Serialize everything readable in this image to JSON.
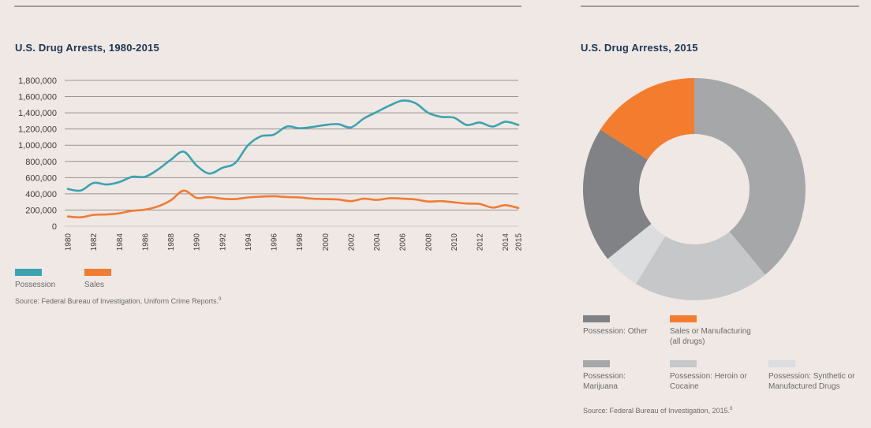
{
  "left_panel": {
    "title": "U.S. Drug Arrests, 1980-2015",
    "legend": [
      {
        "label": "Possession",
        "color": "#3ba3b0"
      },
      {
        "label": "Sales",
        "color": "#f07b33"
      }
    ],
    "source": "Source: Federal Bureau of Investigation, Uniform Crime Reports.",
    "source_note": "9"
  },
  "right_panel": {
    "title": "U.S. Drug Arrests, 2015",
    "legend": [
      {
        "label": "Possession: Other",
        "color": "#808285"
      },
      {
        "label": "Sales or Manufacturing (all drugs)",
        "color": "#f47c2e"
      },
      {
        "label": "Possession: Marijuana",
        "color": "#a6a7a9"
      },
      {
        "label": "Possession: Heroin or Cocaine",
        "color": "#c6c7c9"
      },
      {
        "label": "Possession: Synthetic or Manufactured Drugs",
        "color": "#dcdddf"
      }
    ],
    "source": "Source: Federal Bureau of Investigation, 2015.",
    "source_note": "8"
  },
  "chart_data": [
    {
      "type": "line",
      "title": "U.S. Drug Arrests, 1980-2015",
      "xlabel": "",
      "ylabel": "",
      "ylim": [
        0,
        1800000
      ],
      "yticks": [
        0,
        200000,
        400000,
        600000,
        800000,
        1000000,
        1200000,
        1400000,
        1600000,
        1800000
      ],
      "ytick_labels": [
        "0",
        "200,000",
        "400,000",
        "600,000",
        "800,000",
        "1,000,000",
        "1,200,000",
        "1,400,000",
        "1,600,000",
        "1,800,000"
      ],
      "xtick_labels": [
        "1980",
        "1982",
        "1984",
        "1986",
        "1988",
        "1990",
        "1992",
        "1994",
        "1996",
        "1998",
        "2000",
        "2002",
        "2004",
        "2006",
        "2008",
        "2010",
        "2012",
        "2014",
        "2015"
      ],
      "grid": true,
      "legend_position": "bottom-left",
      "x": [
        1980,
        1981,
        1982,
        1983,
        1984,
        1985,
        1986,
        1987,
        1988,
        1989,
        1990,
        1991,
        1992,
        1993,
        1994,
        1995,
        1996,
        1997,
        1998,
        1999,
        2000,
        2001,
        2002,
        2003,
        2004,
        2005,
        2006,
        2007,
        2008,
        2009,
        2010,
        2011,
        2012,
        2013,
        2014,
        2015
      ],
      "series": [
        {
          "name": "Possession",
          "color": "#3ba3b0",
          "values": [
            460000,
            440000,
            535000,
            515000,
            545000,
            610000,
            610000,
            700000,
            820000,
            920000,
            750000,
            650000,
            720000,
            780000,
            1000000,
            1110000,
            1130000,
            1230000,
            1210000,
            1225000,
            1250000,
            1260000,
            1220000,
            1330000,
            1410000,
            1490000,
            1550000,
            1520000,
            1400000,
            1350000,
            1340000,
            1250000,
            1280000,
            1230000,
            1290000,
            1250000
          ]
        },
        {
          "name": "Sales",
          "color": "#f07b33",
          "values": [
            120000,
            110000,
            140000,
            145000,
            160000,
            190000,
            205000,
            245000,
            320000,
            440000,
            350000,
            360000,
            340000,
            335000,
            355000,
            365000,
            370000,
            360000,
            355000,
            340000,
            335000,
            330000,
            310000,
            340000,
            325000,
            345000,
            340000,
            330000,
            305000,
            310000,
            295000,
            280000,
            275000,
            230000,
            260000,
            225000
          ]
        }
      ]
    },
    {
      "type": "pie",
      "title": "U.S. Drug Arrests, 2015",
      "donut": true,
      "unit": "percent",
      "slices": [
        {
          "label": "Possession: Marijuana",
          "value": 39.0,
          "color": "#a6a7a9"
        },
        {
          "label": "Possession: Heroin or Cocaine",
          "value": 19.8,
          "color": "#c6c7c9"
        },
        {
          "label": "Possession: Synthetic or Manufactured Drugs",
          "value": 5.4,
          "color": "#dcdddf"
        },
        {
          "label": "Possession: Other",
          "value": 19.8,
          "color": "#808285"
        },
        {
          "label": "Sales or Manufacturing (all drugs)",
          "value": 16.0,
          "color": "#f47c2e"
        }
      ],
      "legend_position": "bottom"
    }
  ]
}
